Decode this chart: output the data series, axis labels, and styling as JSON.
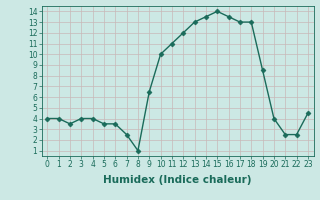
{
  "x": [
    0,
    1,
    2,
    3,
    4,
    5,
    6,
    7,
    8,
    9,
    10,
    11,
    12,
    13,
    14,
    15,
    16,
    17,
    18,
    19,
    20,
    21,
    22,
    23
  ],
  "y": [
    4,
    4,
    3.5,
    4,
    4,
    3.5,
    3.5,
    2.5,
    1,
    6.5,
    10,
    11,
    12,
    13,
    13.5,
    14,
    13.5,
    13,
    13,
    8.5,
    4,
    2.5,
    2.5,
    4.5
  ],
  "line_color": "#1a6b5a",
  "marker_color": "#1a6b5a",
  "bg_color": "#cce8e4",
  "grid_color": "#b0d4d0",
  "xlabel": "Humidex (Indice chaleur)",
  "xlim": [
    -0.5,
    23.5
  ],
  "ylim": [
    0.5,
    14.5
  ],
  "yticks": [
    1,
    2,
    3,
    4,
    5,
    6,
    7,
    8,
    9,
    10,
    11,
    12,
    13,
    14
  ],
  "xticks": [
    0,
    1,
    2,
    3,
    4,
    5,
    6,
    7,
    8,
    9,
    10,
    11,
    12,
    13,
    14,
    15,
    16,
    17,
    18,
    19,
    20,
    21,
    22,
    23
  ],
  "tick_label_fontsize": 5.5,
  "xlabel_fontsize": 7.5,
  "line_width": 1.0,
  "marker_size": 2.5
}
